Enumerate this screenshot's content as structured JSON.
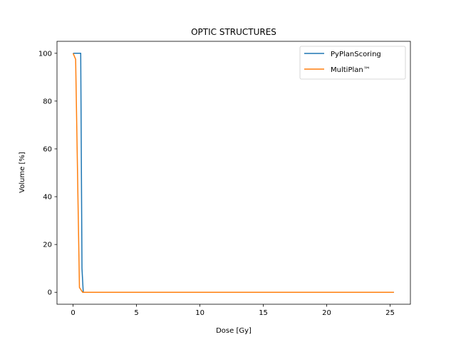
{
  "chart_data": {
    "type": "line",
    "title": "OPTIC STRUCTURES",
    "xlabel": "Dose [Gy]",
    "ylabel": "Volume [%]",
    "xlim": [
      -1.27,
      26.6
    ],
    "ylim": [
      -5,
      105
    ],
    "xticks": [
      0,
      5,
      10,
      15,
      20,
      25
    ],
    "yticks": [
      0,
      20,
      40,
      60,
      80,
      100
    ],
    "grid": false,
    "legend_position": "top-right",
    "series": [
      {
        "name": "PyPlanScoring",
        "color": "#1f77b4",
        "x": [
          0,
          0.6,
          0.7,
          0.8,
          25.3
        ],
        "y": [
          100,
          100,
          10,
          0,
          0
        ]
      },
      {
        "name": "MultiPlan™",
        "color": "#ff7f0e",
        "x": [
          0,
          0.2,
          0.5,
          0.75,
          25.3
        ],
        "y": [
          100,
          97.5,
          2,
          0,
          0
        ]
      }
    ]
  }
}
